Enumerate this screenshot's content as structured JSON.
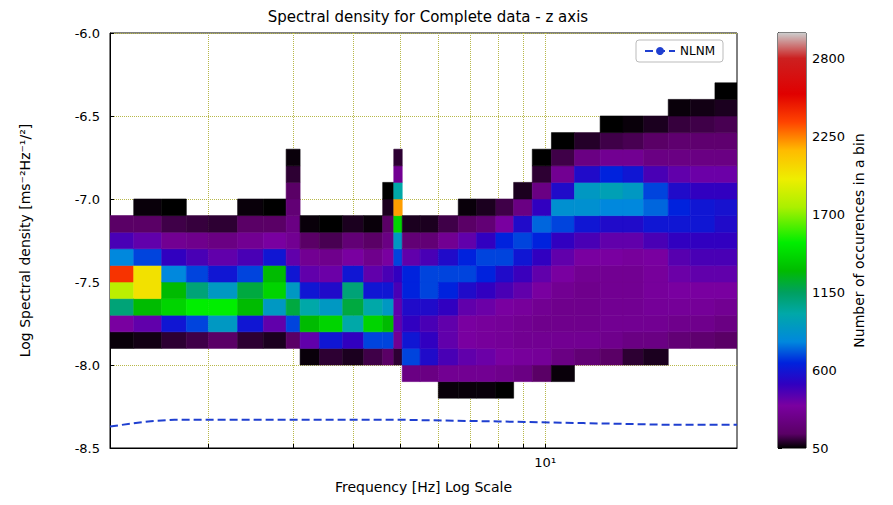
{
  "chart_data": {
    "type": "heatmap",
    "title": "Spectral density for Complete data - z axis",
    "x_label": "Frequency [Hz] Log Scale",
    "y_label": "Log Spectral density [ms⁻²Hz⁻¹/²]",
    "log": "x",
    "grid": true,
    "legend": "upper right",
    "xlim": [
      1.25,
      25
    ],
    "xticks": [
      {
        "value": 2,
        "label": null
      },
      {
        "value": 3,
        "label": null
      },
      {
        "value": 4,
        "label": null
      },
      {
        "value": 5,
        "label": null
      },
      {
        "value": 6,
        "label": null
      },
      {
        "value": 7,
        "label": null
      },
      {
        "value": 8,
        "label": null
      },
      {
        "value": 9,
        "label": null
      },
      {
        "value": 10,
        "label": "10¹"
      }
    ],
    "ylim": [
      -8.5,
      -6.0
    ],
    "yticks": [
      -8.5,
      {
        "value": -8.0,
        "label": "-8.0"
      },
      -7.5,
      {
        "value": -7.0,
        "label": "-7.0"
      },
      -6.5,
      {
        "value": -6.0,
        "label": "-6.0"
      }
    ],
    "x_edges": [
      1.25,
      1.4,
      1.6,
      1.8,
      2.0,
      2.3,
      2.6,
      2.9,
      3.1,
      3.4,
      3.8,
      4.2,
      4.6,
      4.85,
      5.05,
      5.5,
      6.0,
      6.6,
      7.2,
      7.9,
      8.6,
      9.4,
      10.3,
      11.5,
      13,
      14.5,
      16,
      18,
      20,
      22.5,
      25
    ],
    "y_edges": [
      -8.2,
      -8.1,
      -8.0,
      -7.9,
      -7.8,
      -7.7,
      -7.6,
      -7.5,
      -7.4,
      -7.3,
      -7.2,
      -7.1,
      -7.0,
      -6.9,
      -6.8,
      -6.7,
      -6.6,
      -6.5,
      -6.4,
      -6.3,
      -6.2
    ],
    "counts": [
      [
        null,
        null,
        null,
        60,
        350,
        1100,
        1800,
        2400,
        800,
        450,
        150,
        null,
        null,
        null,
        null,
        null,
        null,
        null,
        null,
        null
      ],
      [
        null,
        null,
        null,
        70,
        400,
        1300,
        2000,
        2000,
        700,
        400,
        150,
        60,
        null,
        null,
        null,
        null,
        null,
        null,
        null,
        null
      ],
      [
        null,
        null,
        null,
        100,
        600,
        1400,
        1300,
        800,
        500,
        300,
        120,
        50,
        null,
        null,
        null,
        null,
        null,
        null,
        null,
        null
      ],
      [
        null,
        null,
        null,
        120,
        700,
        1500,
        1100,
        700,
        450,
        280,
        110,
        null,
        null,
        null,
        null,
        null,
        null,
        null,
        null,
        null
      ],
      [
        null,
        null,
        null,
        150,
        900,
        1500,
        900,
        600,
        400,
        250,
        100,
        null,
        null,
        null,
        null,
        null,
        null,
        null,
        null,
        null
      ],
      [
        null,
        null,
        null,
        100,
        600,
        1300,
        1200,
        700,
        450,
        300,
        150,
        60,
        null,
        null,
        null,
        null,
        null,
        null,
        null,
        null
      ],
      [
        null,
        null,
        null,
        80,
        400,
        900,
        1400,
        1300,
        600,
        350,
        150,
        50,
        null,
        null,
        null,
        null,
        null,
        null,
        null,
        null
      ],
      [
        null,
        null,
        null,
        150,
        700,
        1200,
        900,
        600,
        400,
        300,
        250,
        200,
        150,
        100,
        60,
        null,
        null,
        null,
        null,
        null
      ],
      [
        null,
        null,
        60,
        400,
        1300,
        1000,
        600,
        400,
        300,
        150,
        60,
        null,
        null,
        null,
        null,
        null,
        null,
        null,
        null,
        null
      ],
      [
        null,
        null,
        100,
        600,
        1400,
        900,
        550,
        380,
        280,
        130,
        50,
        null,
        null,
        null,
        null,
        null,
        null,
        null,
        null,
        null
      ],
      [
        null,
        null,
        80,
        500,
        1000,
        1200,
        1100,
        600,
        350,
        200,
        80,
        null,
        null,
        null,
        null,
        null,
        null,
        null,
        null,
        null
      ],
      [
        null,
        null,
        120,
        700,
        1400,
        1000,
        600,
        400,
        280,
        150,
        60,
        null,
        null,
        null,
        null,
        null,
        null,
        null,
        null,
        null
      ],
      [
        null,
        null,
        150,
        700,
        1300,
        900,
        600,
        450,
        350,
        250,
        150,
        80,
        50,
        null,
        null,
        null,
        null,
        null,
        null,
        null
      ],
      [
        null,
        null,
        100,
        300,
        400,
        400,
        450,
        500,
        700,
        900,
        1400,
        2200,
        1000,
        300,
        100,
        null,
        null,
        null,
        null,
        null
      ],
      [
        null,
        250,
        700,
        600,
        500,
        550,
        650,
        650,
        400,
        200,
        80,
        null,
        null,
        null,
        null,
        null,
        null,
        null,
        null,
        null
      ],
      [
        null,
        250,
        550,
        500,
        450,
        550,
        700,
        700,
        450,
        200,
        80,
        null,
        null,
        null,
        null,
        null,
        null,
        null,
        null,
        null
      ],
      [
        60,
        300,
        450,
        400,
        400,
        500,
        650,
        700,
        550,
        300,
        120,
        null,
        null,
        null,
        null,
        null,
        null,
        null,
        null,
        null
      ],
      [
        60,
        300,
        400,
        350,
        350,
        400,
        550,
        700,
        650,
        400,
        150,
        60,
        null,
        null,
        null,
        null,
        null,
        null,
        null,
        null
      ],
      [
        60,
        300,
        380,
        330,
        330,
        380,
        500,
        650,
        700,
        500,
        200,
        80,
        null,
        null,
        null,
        null,
        null,
        null,
        null,
        null
      ],
      [
        50,
        280,
        350,
        320,
        320,
        350,
        450,
        550,
        700,
        650,
        350,
        120,
        null,
        null,
        null,
        null,
        null,
        null,
        null,
        null
      ],
      [
        null,
        250,
        330,
        300,
        300,
        330,
        400,
        480,
        600,
        700,
        550,
        250,
        80,
        null,
        null,
        null,
        null,
        null,
        null,
        null
      ],
      [
        null,
        150,
        320,
        300,
        280,
        300,
        350,
        400,
        500,
        650,
        750,
        500,
        250,
        100,
        50,
        null,
        null,
        null,
        null,
        null
      ],
      [
        null,
        60,
        250,
        300,
        280,
        280,
        300,
        350,
        400,
        500,
        700,
        850,
        550,
        300,
        120,
        50,
        null,
        null,
        null,
        null
      ],
      [
        null,
        null,
        200,
        300,
        280,
        280,
        280,
        300,
        350,
        450,
        600,
        850,
        900,
        550,
        250,
        90,
        null,
        null,
        null,
        null
      ],
      [
        null,
        null,
        150,
        280,
        300,
        300,
        300,
        300,
        350,
        400,
        550,
        800,
        950,
        650,
        300,
        120,
        50,
        null,
        null,
        null
      ],
      [
        null,
        null,
        100,
        250,
        300,
        300,
        300,
        300,
        330,
        400,
        550,
        800,
        900,
        600,
        300,
        130,
        60,
        null,
        null,
        null
      ],
      [
        null,
        null,
        80,
        250,
        300,
        320,
        330,
        330,
        350,
        450,
        600,
        750,
        700,
        450,
        250,
        150,
        80,
        null,
        null,
        null
      ],
      [
        null,
        null,
        null,
        200,
        280,
        320,
        350,
        380,
        420,
        500,
        600,
        650,
        550,
        400,
        250,
        180,
        110,
        60,
        null,
        null
      ],
      [
        null,
        null,
        null,
        180,
        280,
        320,
        350,
        400,
        450,
        500,
        600,
        600,
        500,
        380,
        250,
        180,
        120,
        70,
        null,
        null
      ],
      [
        null,
        null,
        null,
        150,
        250,
        300,
        350,
        400,
        450,
        500,
        550,
        580,
        500,
        380,
        250,
        180,
        130,
        80,
        50,
        null
      ]
    ],
    "colorbar": {
      "label": "Number of occurences in a bin",
      "range": [
        50,
        2980
      ],
      "ticks": [
        50,
        600,
        1150,
        1700,
        2250,
        2800
      ]
    },
    "series": [
      {
        "name": "NLNM",
        "type": "line",
        "color": "#1f3fd0",
        "line_style": "dashed",
        "x": [
          1.25,
          1.5,
          1.7,
          3,
          5,
          8,
          12,
          18,
          25
        ],
        "values": [
          -8.37,
          -8.34,
          -8.33,
          -8.33,
          -8.33,
          -8.34,
          -8.35,
          -8.36,
          -8.36
        ]
      }
    ]
  }
}
